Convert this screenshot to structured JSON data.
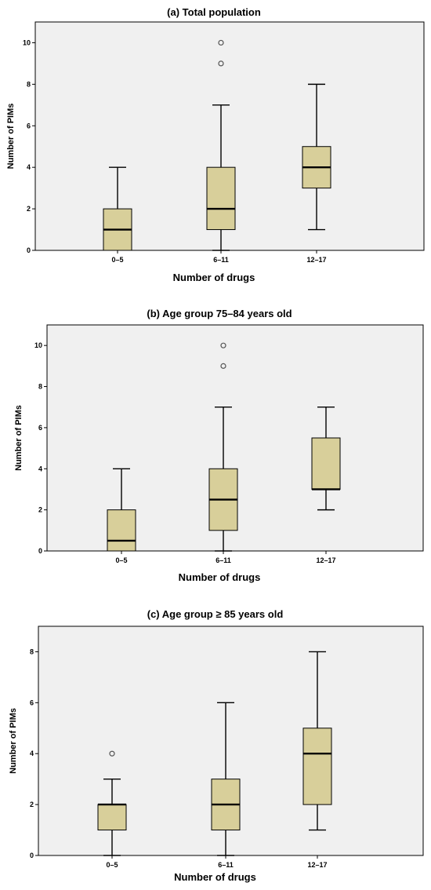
{
  "colors": {
    "plot_background": "#f0f0f0",
    "box_fill": "#d8cf9a",
    "stroke": "#000000"
  },
  "chart_data": [
    {
      "type": "box",
      "title": "(a) Total population",
      "xlabel": "Number of drugs",
      "ylabel": "Number of PIMs",
      "ylim": [
        0,
        11
      ],
      "yticks": [
        "0",
        "2",
        "4",
        "6",
        "8",
        "10"
      ],
      "categories": [
        "0–5",
        "6–11",
        "12–17"
      ],
      "boxes": [
        {
          "min": 0,
          "q1": 0,
          "median": 1,
          "q3": 2,
          "max": 4,
          "outliers": []
        },
        {
          "min": 0,
          "q1": 1,
          "median": 2,
          "q3": 4,
          "max": 7,
          "outliers": [
            9,
            10
          ]
        },
        {
          "min": 1,
          "q1": 3,
          "median": 4,
          "q3": 5,
          "max": 8,
          "outliers": []
        }
      ],
      "grid": false
    },
    {
      "type": "box",
      "title": "(b) Age group 75–84 years old",
      "xlabel": "Number of drugs",
      "ylabel": "Number of PIMs",
      "ylim": [
        0,
        11
      ],
      "yticks": [
        "0",
        "2",
        "4",
        "6",
        "8",
        "10"
      ],
      "categories": [
        "0–5",
        "6–11",
        "12–17"
      ],
      "boxes": [
        {
          "min": 0,
          "q1": 0,
          "median": 0.5,
          "q3": 2,
          "max": 4,
          "outliers": []
        },
        {
          "min": 0,
          "q1": 1,
          "median": 2.5,
          "q3": 4,
          "max": 7,
          "outliers": [
            9,
            10
          ]
        },
        {
          "min": 2,
          "q1": 3,
          "median": 3,
          "q3": 5.5,
          "max": 7,
          "outliers": []
        }
      ],
      "grid": false
    },
    {
      "type": "box",
      "title": "(c) Age group ≥ 85 years old",
      "xlabel": "Number of drugs",
      "ylabel": "Number of PIMs",
      "ylim": [
        0,
        9
      ],
      "yticks": [
        "0",
        "2",
        "4",
        "6",
        "8"
      ],
      "categories": [
        "0–5",
        "6–11",
        "12–17"
      ],
      "boxes": [
        {
          "min": 0,
          "q1": 1,
          "median": 2,
          "q3": 2,
          "max": 3,
          "outliers": [
            4
          ]
        },
        {
          "min": 0,
          "q1": 1,
          "median": 2,
          "q3": 3,
          "max": 6,
          "outliers": []
        },
        {
          "min": 1,
          "q1": 2,
          "median": 4,
          "q3": 5,
          "max": 8,
          "outliers": []
        }
      ],
      "grid": false
    }
  ]
}
